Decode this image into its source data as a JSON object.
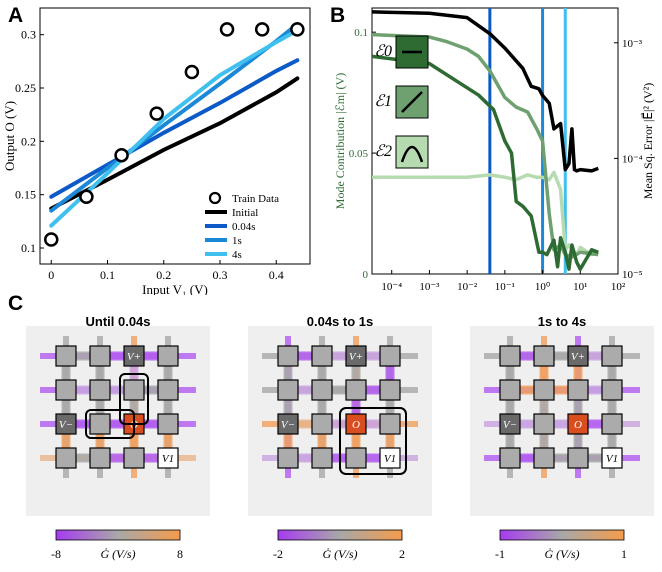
{
  "panels": {
    "A": "A",
    "B": "B",
    "C": "C"
  },
  "chart_data": [
    {
      "type": "line",
      "panel": "A",
      "xlabel": "Input V₁ (V)",
      "ylabel": "Output O (V)",
      "xlim": [
        -0.02,
        0.46
      ],
      "ylim": [
        0.085,
        0.325
      ],
      "xticks": [
        "0",
        "0.1",
        "0.2",
        "0.3",
        "0.4"
      ],
      "yticks": [
        "0.1",
        "0.15",
        "0.2",
        "0.25",
        "0.3"
      ],
      "legend": {
        "position": "bottom-right",
        "entries": [
          "Train Data",
          "Initial",
          "0.04s",
          "1s",
          "4s"
        ]
      },
      "series": [
        {
          "name": "Train Data",
          "marker": "circle",
          "color": "#000000",
          "x": [
            0,
            0.0625,
            0.125,
            0.1875,
            0.25,
            0.3125,
            0.375,
            0.4375
          ],
          "y": [
            0.108,
            0.148,
            0.187,
            0.226,
            0.265,
            0.305,
            0.305,
            0.305
          ]
        },
        {
          "name": "Initial",
          "color": "#000000",
          "x": [
            0,
            0.1,
            0.2,
            0.3,
            0.4,
            0.4375
          ],
          "y": [
            0.137,
            0.164,
            0.192,
            0.217,
            0.246,
            0.259
          ]
        },
        {
          "name": "0.04s",
          "color": "#0b5ac8",
          "x": [
            0,
            0.1,
            0.2,
            0.3,
            0.4,
            0.4375
          ],
          "y": [
            0.148,
            0.178,
            0.208,
            0.236,
            0.266,
            0.276
          ]
        },
        {
          "name": "1s",
          "color": "#1c88d8",
          "x": [
            0,
            0.1,
            0.2,
            0.3,
            0.4,
            0.4375
          ],
          "y": [
            0.135,
            0.175,
            0.215,
            0.254,
            0.294,
            0.31
          ]
        },
        {
          "name": "4s",
          "color": "#3fc0ee",
          "x": [
            0,
            0.1,
            0.2,
            0.3,
            0.4,
            0.4375
          ],
          "y": [
            0.121,
            0.17,
            0.221,
            0.262,
            0.293,
            0.304
          ]
        }
      ]
    },
    {
      "type": "line",
      "panel": "B",
      "xlabel": "Training Time (s)",
      "ylabel_left": "Mode Contribution |ℰm| (V)",
      "ylabel_right": "Mean Sq. Error |E⃗|² (V²)",
      "x_scale": "log",
      "xlim": [
        3e-05,
        100
      ],
      "ylim_left": [
        0,
        0.11
      ],
      "ylim_right_log": [
        1e-05,
        0.002
      ],
      "xticks": [
        "10⁻⁴",
        "10⁻³",
        "10⁻²",
        "10⁻¹",
        "10⁰",
        "10¹",
        "10²"
      ],
      "yticks_left": [
        "0",
        "0.05",
        "0.1"
      ],
      "yticks_right": [
        "10⁻⁵",
        "10⁻⁴",
        "10⁻³"
      ],
      "vlines": [
        {
          "x": 0.04,
          "color": "#0b5ac8"
        },
        {
          "x": 1,
          "color": "#1c88d8"
        },
        {
          "x": 4,
          "color": "#3fc0ee"
        }
      ],
      "mode_labels": [
        "ℰ0",
        "ℰ1",
        "ℰ2"
      ],
      "series": [
        {
          "name": "MSE",
          "axis": "right",
          "color": "#000000",
          "x": [
            3e-05,
            0.001,
            0.01,
            0.04,
            0.1,
            0.3,
            0.5,
            0.8,
            1,
            1.5,
            2,
            3,
            4,
            5,
            6,
            7,
            8,
            10,
            20,
            30
          ],
          "y": [
            0.00185,
            0.0018,
            0.00165,
            0.0012,
            0.0009,
            0.0006,
            0.00042,
            0.0004,
            0.00035,
            0.0003,
            0.00018,
            0.0002,
            8e-05,
            9e-05,
            0.00018,
            8e-05,
            7.8e-05,
            8e-05,
            7.8e-05,
            8.2e-05
          ]
        },
        {
          "name": "ℰ0",
          "axis": "left",
          "color": "#2e6b33",
          "x": [
            3e-05,
            0.001,
            0.005,
            0.02,
            0.05,
            0.1,
            0.15,
            0.2,
            0.3,
            0.5,
            0.8,
            1,
            1.3,
            2,
            2.5,
            3,
            4,
            5,
            6,
            8,
            10,
            20,
            30
          ],
          "y": [
            0.09,
            0.087,
            0.08,
            0.074,
            0.068,
            0.055,
            0.05,
            0.03,
            0.028,
            0.024,
            0.009,
            0.009,
            0.008,
            0.014,
            0.003,
            0.015,
            0.009,
            0.002,
            0.012,
            0.005,
            0.002,
            0.01,
            0.009
          ]
        },
        {
          "name": "ℰ1",
          "axis": "left",
          "color": "#6ea070",
          "x": [
            3e-05,
            0.001,
            0.003,
            0.01,
            0.02,
            0.04,
            0.1,
            0.2,
            0.4,
            0.7,
            1,
            1.5,
            2,
            3,
            4,
            6,
            10,
            30
          ],
          "y": [
            0.099,
            0.098,
            0.096,
            0.093,
            0.09,
            0.084,
            0.073,
            0.069,
            0.067,
            0.06,
            0.055,
            0.025,
            0.01,
            0.012,
            0.008,
            0.007,
            0.009,
            0.008
          ]
        },
        {
          "name": "ℰ2",
          "axis": "left",
          "color": "#b6dbb0",
          "x": [
            3e-05,
            0.001,
            0.01,
            0.04,
            0.1,
            0.2,
            0.4,
            0.7,
            1,
            1.5,
            2,
            3,
            4,
            5,
            8,
            10,
            20,
            30
          ],
          "y": [
            0.04,
            0.04,
            0.04,
            0.041,
            0.04,
            0.039,
            0.041,
            0.04,
            0.04,
            0.039,
            0.042,
            0.035,
            0.01,
            0.012,
            0.008,
            0.011,
            0.008,
            0.009
          ]
        }
      ]
    },
    {
      "type": "heatmap",
      "panel": "C1",
      "title": "Until 0.04s",
      "colorbar": {
        "min": "-8",
        "max": "8",
        "label": "Ġ (V/s)"
      },
      "nodes": {
        "V+": "V+",
        "V-": "V−",
        "O": "O",
        "V1": "V1"
      }
    },
    {
      "type": "heatmap",
      "panel": "C2",
      "title": "0.04s to 1s",
      "colorbar": {
        "min": "-2",
        "max": "2",
        "label": "Ġ (V/s)"
      }
    },
    {
      "type": "heatmap",
      "panel": "C3",
      "title": "1s to 4s",
      "colorbar": {
        "min": "-1",
        "max": "1",
        "label": "Ġ (V/s)"
      }
    }
  ]
}
